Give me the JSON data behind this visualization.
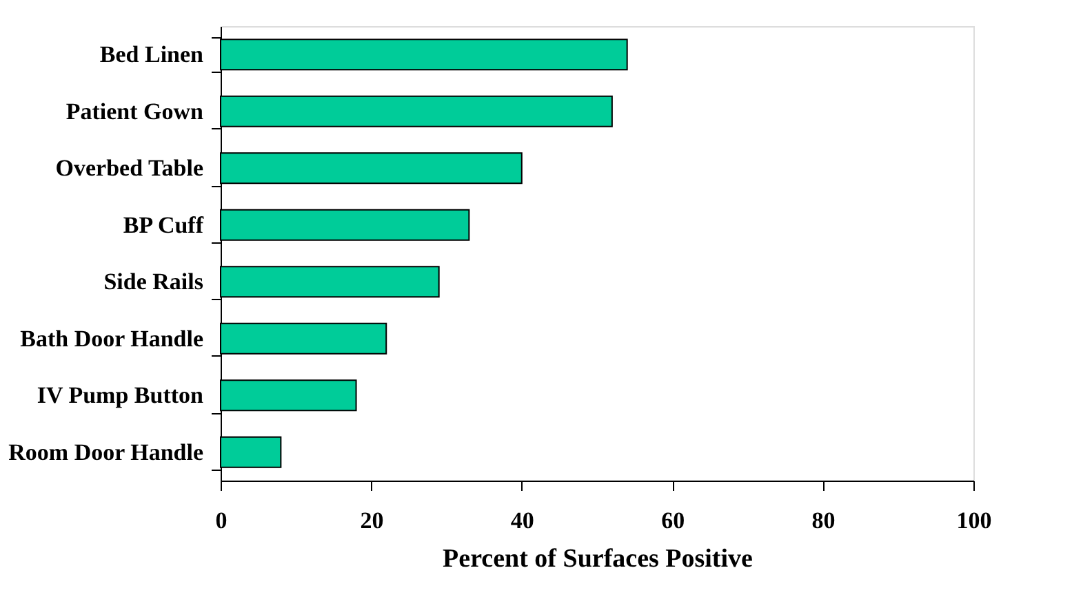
{
  "chart_data": {
    "type": "bar",
    "orientation": "horizontal",
    "xlabel": "Percent of Surfaces Positive",
    "categories": [
      "Bed Linen",
      "Patient Gown",
      "Overbed Table",
      "BP Cuff",
      "Side Rails",
      "Bath Door Handle",
      "IV Pump Button",
      "Room Door Handle"
    ],
    "values": [
      54,
      52,
      40,
      33,
      29,
      22,
      18,
      8
    ],
    "color": "#00cc99",
    "xlim": [
      0,
      100
    ],
    "xticks": [
      0,
      20,
      40,
      60,
      80,
      100
    ],
    "grid": false
  }
}
